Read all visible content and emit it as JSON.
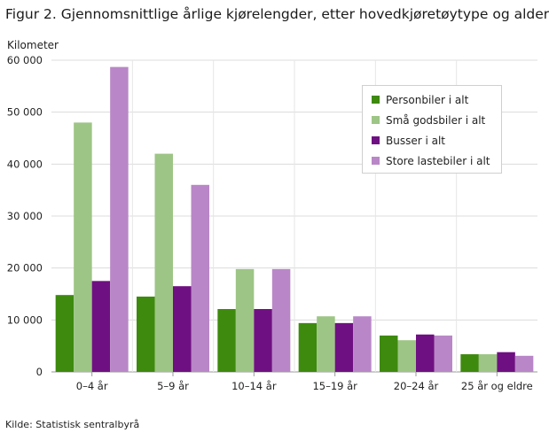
{
  "title": "Figur 2. Gjennomsnittlige årlige kjørelengder, etter hovedkjøretøytype og alder",
  "source": "Kilde: Statistisk sentralbyrå",
  "chart_data": {
    "type": "bar",
    "ylabel": "Kilometer",
    "xlabel": "",
    "ylim": [
      0,
      60000
    ],
    "yticks": [
      0,
      10000,
      20000,
      30000,
      40000,
      50000,
      60000
    ],
    "ytick_labels": [
      "0",
      "10 000",
      "20 000",
      "30 000",
      "40 000",
      "50 000",
      "60 000"
    ],
    "grid": "horizontal",
    "legend_position": "top-right",
    "categories": [
      "0–4 år",
      "5–9 år",
      "10–14 år",
      "15–19 år",
      "20–24 år",
      "25 år og eldre"
    ],
    "series": [
      {
        "name": "Personbiler i alt",
        "color": "#3e8a0e",
        "values": [
          14800,
          14500,
          12100,
          9400,
          7000,
          3400
        ]
      },
      {
        "name": "Små godsbiler i alt",
        "color": "#9dc585",
        "values": [
          48000,
          42000,
          19800,
          10700,
          6100,
          3400
        ]
      },
      {
        "name": "Busser i alt",
        "color": "#6f1082",
        "values": [
          17500,
          16500,
          12100,
          9400,
          7200,
          3800
        ]
      },
      {
        "name": "Store lastebiler i alt",
        "color": "#b987c7",
        "values": [
          58700,
          36000,
          19800,
          10700,
          7000,
          3100
        ]
      }
    ]
  }
}
